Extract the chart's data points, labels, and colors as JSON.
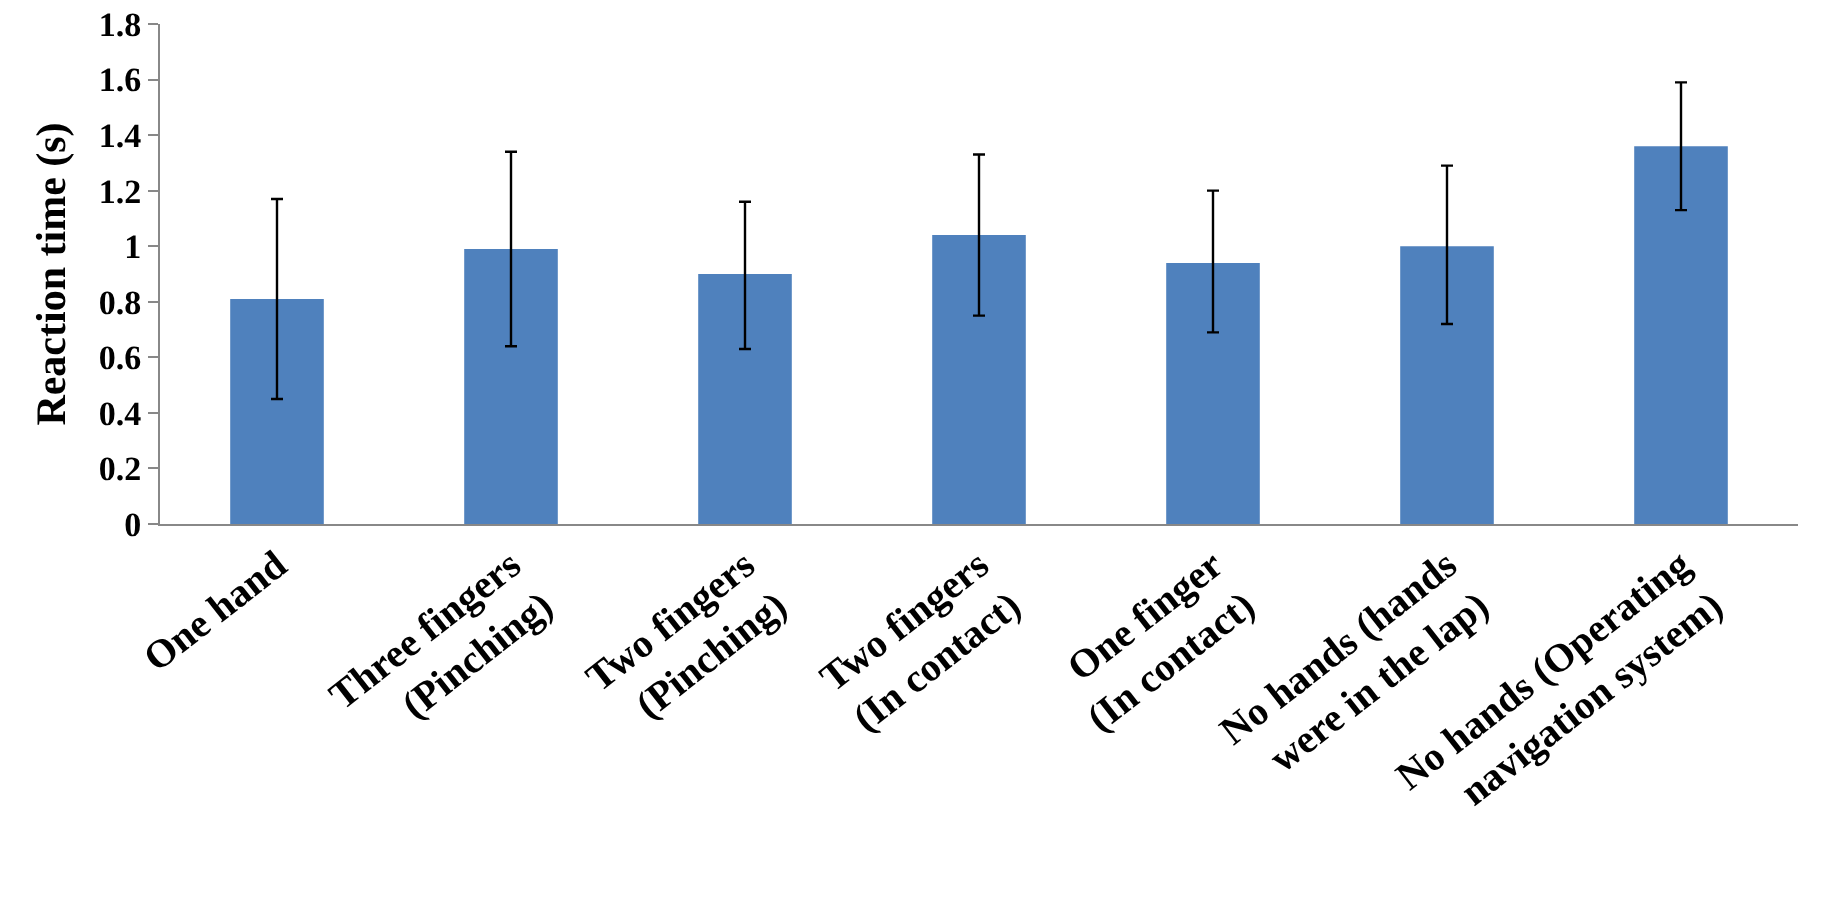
{
  "chart_data": {
    "type": "bar",
    "ylabel": "Reaction time (s)",
    "categories": [
      "One hand",
      "Three fingers\n(Pinching)",
      "Two fingers\n(Pinching)",
      "Two fingers\n(In contact)",
      "One finger\n(In contact)",
      "No hands (hands\nwere in the lap)",
      "No hands (Operating\nnavigation system)"
    ],
    "values": [
      0.81,
      0.99,
      0.9,
      1.04,
      0.94,
      1.0,
      1.36
    ],
    "errors": [
      [
        0.45,
        1.17
      ],
      [
        0.64,
        1.34
      ],
      [
        0.63,
        1.16
      ],
      [
        0.75,
        1.33
      ],
      [
        0.69,
        1.2
      ],
      [
        0.72,
        1.29
      ],
      [
        1.13,
        1.59
      ]
    ],
    "color": "#4f81bd",
    "ylim": [
      0,
      1.8
    ],
    "yticks": [
      0,
      0.2,
      0.4,
      0.6,
      0.8,
      1,
      1.2,
      1.4,
      1.6,
      1.8
    ]
  }
}
